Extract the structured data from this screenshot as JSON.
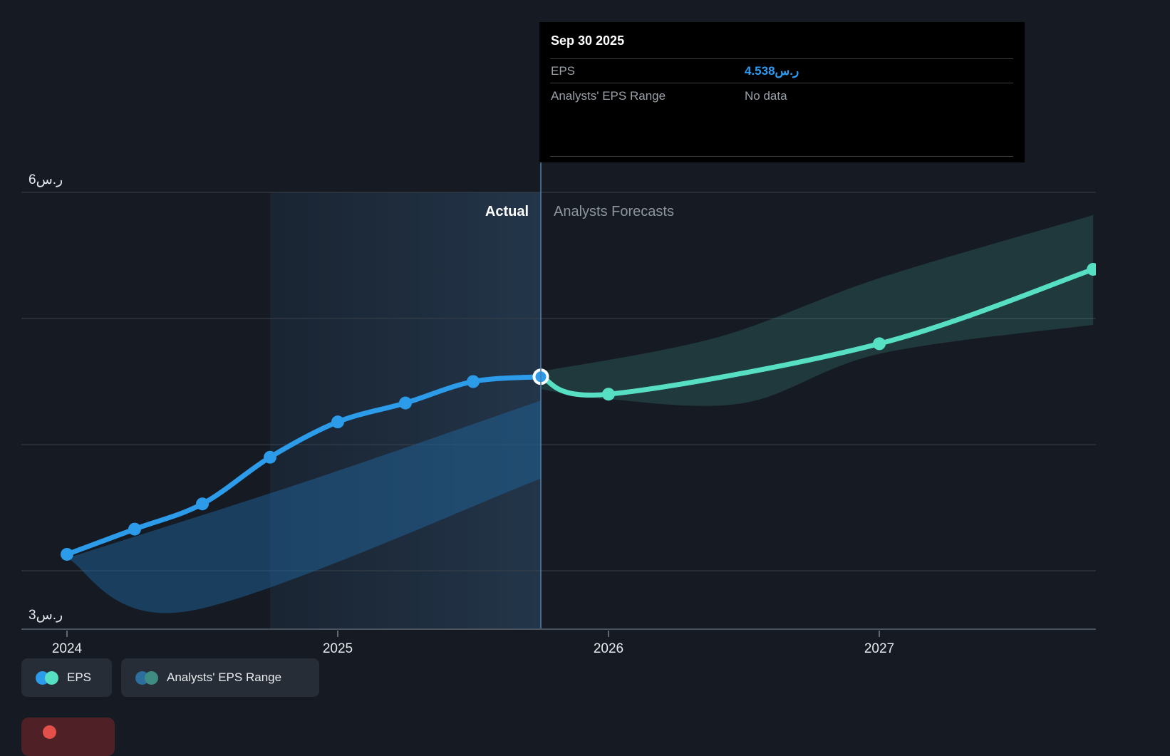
{
  "page": {
    "background": "#151a23"
  },
  "tooltip": {
    "date": "Sep 30 2025",
    "rows": [
      {
        "label": "EPS",
        "value": "4.538ر.س"
      },
      {
        "label": "Analysts' EPS Range",
        "value": "No data"
      }
    ],
    "accent_color": "#2e9cf5",
    "muted_color": "#9aa1a8"
  },
  "legend": [
    {
      "label": "EPS",
      "dot_colors": [
        "#2b9bea",
        "#57dfc4"
      ]
    },
    {
      "label": "Analysts' EPS Range",
      "dot_colors": [
        "#2c6e9e",
        "#3f8c83"
      ]
    }
  ],
  "partial_chip": {
    "bg": "#4f2127",
    "dot_color": "#e25049"
  },
  "chart_data": {
    "type": "line",
    "title": "",
    "currency_suffix": "ر.س",
    "y_axis": {
      "top_label": "6ر.س",
      "bottom_label": "3ر.س",
      "grid_values": [
        6,
        5,
        4,
        3
      ],
      "ylim": [
        2.55,
        6.25
      ]
    },
    "x_axis": {
      "ticks": [
        {
          "label": "2024",
          "t": 0
        },
        {
          "label": "2025",
          "t": 1
        },
        {
          "label": "2026",
          "t": 2
        },
        {
          "label": "2027",
          "t": 3
        }
      ]
    },
    "divider": {
      "t": 1.75,
      "left_label": "Actual",
      "right_label": "Analysts Forecasts",
      "color": "#4f7ca6"
    },
    "highlight_window": {
      "t0": 0.75,
      "t1": 1.75
    },
    "series": [
      {
        "name": "EPS",
        "kind": "actual",
        "color": "#2b9bea",
        "points": [
          {
            "date": "Dec 31 2023",
            "t": 0,
            "value": 3.13
          },
          {
            "date": "Mar 31 2024",
            "t": 0.25,
            "value": 3.33
          },
          {
            "date": "Jun 30 2024",
            "t": 0.5,
            "value": 3.53
          },
          {
            "date": "Sep 30 2024",
            "t": 0.75,
            "value": 3.9
          },
          {
            "date": "Dec 31 2024",
            "t": 1,
            "value": 4.18
          },
          {
            "date": "Mar 31 2025",
            "t": 1.25,
            "value": 4.33
          },
          {
            "date": "Jun 30 2025",
            "t": 1.5,
            "value": 4.5
          },
          {
            "date": "Sep 30 2025",
            "t": 1.75,
            "value": 4.538,
            "active": true
          }
        ]
      },
      {
        "name": "EPS (Analysts Forecast)",
        "kind": "forecast",
        "color": "#57dfc4",
        "points": [
          {
            "date": "Sep 30 2025",
            "t": 1.75,
            "value": 4.538,
            "dot": false
          },
          {
            "date": "Dec 31 2025",
            "t": 2,
            "value": 4.4,
            "dot": true
          },
          {
            "date": "Dec 31 2026",
            "t": 3,
            "value": 4.8,
            "dot": true
          },
          {
            "date": "Sep 30 2027",
            "t": 3.79,
            "value": 5.39,
            "dot": true
          }
        ]
      }
    ],
    "bands": [
      {
        "name": "past-eps-range",
        "color": "#1f6399",
        "opacity": 0.5,
        "top": [
          [
            0,
            3.1
          ],
          [
            0.9,
            3.72
          ],
          [
            1.75,
            4.35
          ]
        ],
        "bottom": [
          [
            0,
            3.1
          ],
          [
            0.45,
            2.68
          ],
          [
            1.75,
            3.73
          ]
        ]
      },
      {
        "name": "analysts-eps-range",
        "color": "#58dfc4",
        "opacity": 0.16,
        "top": [
          [
            1.75,
            4.58
          ],
          [
            2.4,
            4.85
          ],
          [
            3.0,
            5.32
          ],
          [
            3.79,
            5.82
          ]
        ],
        "bottom": [
          [
            1.75,
            4.44
          ],
          [
            2.0,
            4.36
          ],
          [
            2.5,
            4.33
          ],
          [
            3.0,
            4.72
          ],
          [
            3.79,
            4.95
          ]
        ]
      }
    ],
    "legend_position": "bottom-left",
    "grid": true
  }
}
